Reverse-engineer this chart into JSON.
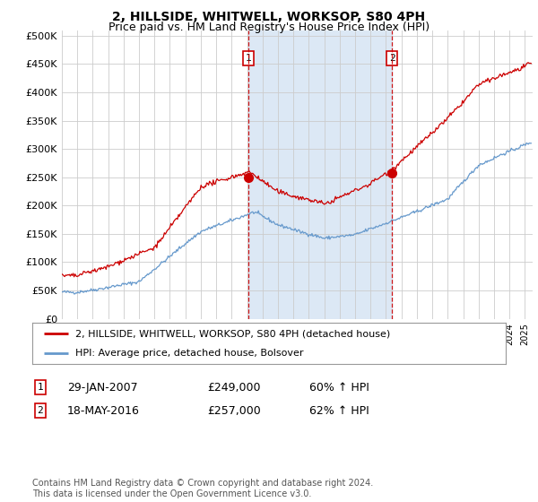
{
  "title": "2, HILLSIDE, WHITWELL, WORKSOP, S80 4PH",
  "subtitle": "Price paid vs. HM Land Registry's House Price Index (HPI)",
  "ylabel_ticks": [
    "£0",
    "£50K",
    "£100K",
    "£150K",
    "£200K",
    "£250K",
    "£300K",
    "£350K",
    "£400K",
    "£450K",
    "£500K"
  ],
  "ytick_values": [
    0,
    50000,
    100000,
    150000,
    200000,
    250000,
    300000,
    350000,
    400000,
    450000,
    500000
  ],
  "ylim": [
    0,
    510000
  ],
  "xlim_start": 1995.0,
  "xlim_end": 2025.5,
  "bg_color": "#ffffff",
  "plot_bg_color": "#ffffff",
  "grid_color": "#cccccc",
  "shade_color": "#dce8f5",
  "red_line_color": "#cc0000",
  "blue_line_color": "#6699cc",
  "marker_color": "#cc0000",
  "sale1_x": 2007.08,
  "sale1_y": 249000,
  "sale2_x": 2016.38,
  "sale2_y": 257000,
  "legend_label1": "2, HILLSIDE, WHITWELL, WORKSOP, S80 4PH (detached house)",
  "legend_label2": "HPI: Average price, detached house, Bolsover",
  "annotation1_label": "1",
  "annotation2_label": "2",
  "table_row1": [
    "1",
    "29-JAN-2007",
    "£249,000",
    "60% ↑ HPI"
  ],
  "table_row2": [
    "2",
    "18-MAY-2016",
    "£257,000",
    "62% ↑ HPI"
  ],
  "footnote": "Contains HM Land Registry data © Crown copyright and database right 2024.\nThis data is licensed under the Open Government Licence v3.0.",
  "title_fontsize": 10,
  "subtitle_fontsize": 9
}
